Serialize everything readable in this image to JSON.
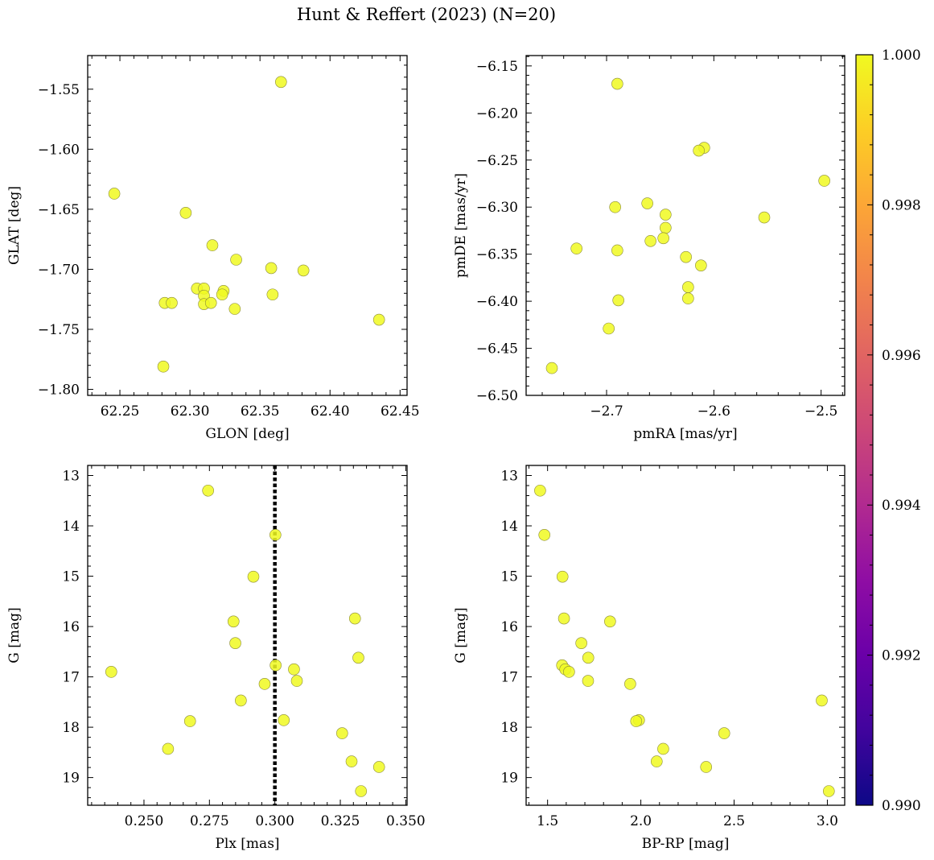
{
  "figure": {
    "title": "Hunt & Reffert (2023) (N=20)"
  },
  "colorbar": {
    "min": 0.99,
    "max": 1.0,
    "ticks": [
      "0.990",
      "0.992",
      "0.994",
      "0.996",
      "0.998",
      "1.000"
    ],
    "colormap": "plasma",
    "point_value": 1.0
  },
  "chart_data": [
    {
      "type": "scatter",
      "xlabel": "GLON [deg]",
      "ylabel": "GLAT [deg]",
      "xlim": [
        62.227,
        62.455
      ],
      "ylim": [
        -1.805,
        -1.522
      ],
      "xticks": [
        62.25,
        62.3,
        62.35,
        62.4,
        62.45
      ],
      "xticklabels": [
        "62.25",
        "62.30",
        "62.35",
        "62.40",
        "62.45"
      ],
      "yticks": [
        -1.8,
        -1.75,
        -1.7,
        -1.65,
        -1.6,
        -1.55
      ],
      "yticklabels": [
        "−1.80",
        "−1.75",
        "−1.70",
        "−1.65",
        "−1.60",
        "−1.55"
      ],
      "y_inverted": false,
      "x": [
        62.365,
        62.246,
        62.297,
        62.316,
        62.333,
        62.358,
        62.381,
        62.305,
        62.31,
        62.324,
        62.31,
        62.359,
        62.323,
        62.282,
        62.287,
        62.31,
        62.315,
        62.332,
        62.435,
        62.281
      ],
      "y": [
        -1.544,
        -1.637,
        -1.653,
        -1.68,
        -1.692,
        -1.699,
        -1.701,
        -1.716,
        -1.716,
        -1.718,
        -1.722,
        -1.721,
        -1.721,
        -1.728,
        -1.728,
        -1.729,
        -1.728,
        -1.733,
        -1.742,
        -1.781
      ]
    },
    {
      "type": "scatter",
      "xlabel": "pmRA [mas/yr]",
      "ylabel": "pmDE [mas/yr]",
      "xlim": [
        -2.775,
        -2.478
      ],
      "ylim": [
        -6.5,
        -6.139
      ],
      "xticks": [
        -2.7,
        -2.6,
        -2.5
      ],
      "xticklabels": [
        "−2.7",
        "−2.6",
        "−2.5"
      ],
      "yticks": [
        -6.5,
        -6.45,
        -6.4,
        -6.35,
        -6.3,
        -6.25,
        -6.2,
        -6.15
      ],
      "yticklabels": [
        "−6.50",
        "−6.45",
        "−6.40",
        "−6.35",
        "−6.30",
        "−6.25",
        "−6.20",
        "−6.15"
      ],
      "y_inverted": false,
      "x": [
        -2.69,
        -2.609,
        -2.614,
        -2.497,
        -2.553,
        -2.692,
        -2.662,
        -2.645,
        -2.645,
        -2.659,
        -2.647,
        -2.728,
        -2.69,
        -2.626,
        -2.612,
        -2.624,
        -2.624,
        -2.689,
        -2.698,
        -2.751
      ],
      "y": [
        -6.169,
        -6.237,
        -6.24,
        -6.272,
        -6.311,
        -6.3,
        -6.296,
        -6.308,
        -6.322,
        -6.336,
        -6.333,
        -6.344,
        -6.346,
        -6.353,
        -6.362,
        -6.385,
        -6.397,
        -6.399,
        -6.429,
        -6.471
      ]
    },
    {
      "type": "scatter",
      "xlabel": "Plx [mas]",
      "ylabel": "G [mag]",
      "xlim": [
        0.2285,
        0.3505
      ],
      "ylim": [
        19.55,
        12.8
      ],
      "xticks": [
        0.25,
        0.275,
        0.3,
        0.325,
        0.35
      ],
      "xticklabels": [
        "0.250",
        "0.275",
        "0.300",
        "0.325",
        "0.350"
      ],
      "yticks": [
        13,
        14,
        15,
        16,
        17,
        18,
        19
      ],
      "yticklabels": [
        "13",
        "14",
        "15",
        "16",
        "17",
        "18",
        "19"
      ],
      "y_inverted": true,
      "vline": 0.3,
      "x": [
        0.2745,
        0.3002,
        0.2918,
        0.3306,
        0.2842,
        0.2849,
        0.3319,
        0.2375,
        0.3003,
        0.3073,
        0.3084,
        0.2961,
        0.287,
        0.3034,
        0.2676,
        0.3257,
        0.2592,
        0.3293,
        0.3398,
        0.3329
      ],
      "y": [
        13.3,
        14.18,
        15.01,
        15.84,
        15.9,
        16.33,
        16.62,
        16.9,
        16.77,
        16.85,
        17.08,
        17.14,
        17.47,
        17.86,
        17.88,
        18.12,
        18.43,
        18.68,
        18.79,
        19.27
      ]
    },
    {
      "type": "scatter",
      "xlabel": "BP-RP [mag]",
      "ylabel": "G [mag]",
      "xlim": [
        1.385,
        3.093
      ],
      "ylim": [
        19.55,
        12.8
      ],
      "xticks": [
        1.5,
        2.0,
        2.5,
        3.0
      ],
      "xticklabels": [
        "1.5",
        "2.0",
        "2.5",
        "3.0"
      ],
      "yticks": [
        13,
        14,
        15,
        16,
        17,
        18,
        19
      ],
      "yticklabels": [
        "13",
        "14",
        "15",
        "16",
        "17",
        "18",
        "19"
      ],
      "y_inverted": true,
      "x": [
        1.46,
        1.483,
        1.58,
        1.588,
        1.835,
        1.681,
        1.718,
        1.578,
        1.595,
        1.615,
        1.717,
        1.943,
        2.97,
        1.99,
        1.975,
        2.447,
        2.12,
        2.085,
        2.35,
        3.008
      ],
      "y": [
        13.3,
        14.18,
        15.01,
        15.84,
        15.9,
        16.33,
        16.62,
        16.77,
        16.85,
        16.9,
        17.08,
        17.14,
        17.47,
        17.86,
        17.88,
        18.12,
        18.43,
        18.68,
        18.79,
        19.27
      ]
    }
  ]
}
